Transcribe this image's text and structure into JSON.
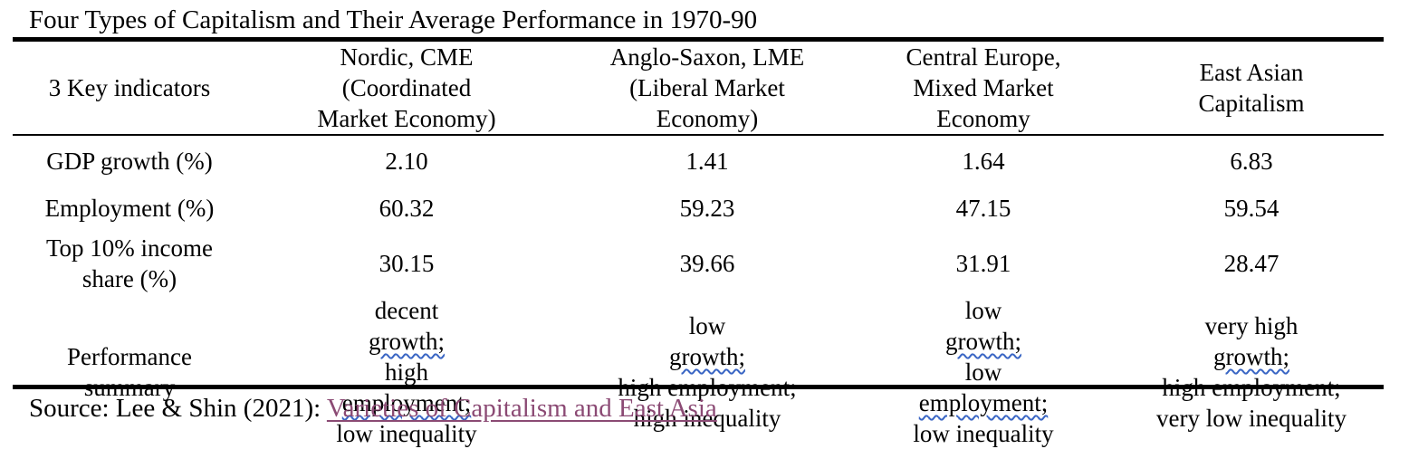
{
  "caption": "Four Types of Capitalism and Their Average Performance in 1970-90",
  "table": {
    "headers": [
      {
        "lines": [
          "3 Key indicators"
        ]
      },
      {
        "lines": [
          "Nordic, CME",
          "(Coordinated",
          "Market Economy)"
        ]
      },
      {
        "lines": [
          "Anglo-Saxon, LME",
          "(Liberal Market",
          "Economy)"
        ]
      },
      {
        "lines": [
          "Central Europe,",
          "Mixed Market",
          "Economy"
        ]
      },
      {
        "lines": [
          "East Asian",
          "Capitalism"
        ]
      }
    ],
    "rows": [
      {
        "label": [
          "GDP growth (%)"
        ],
        "values": [
          "2.10",
          "1.41",
          "1.64",
          "6.83"
        ]
      },
      {
        "label": [
          "Employment (%)"
        ],
        "values": [
          "60.32",
          "59.23",
          "47.15",
          "59.54"
        ]
      },
      {
        "label": [
          "Top 10% income",
          "share (%)"
        ],
        "values": [
          "30.15",
          "39.66",
          "31.91",
          "28.47"
        ]
      }
    ],
    "summary": {
      "label": [
        "Performance",
        "summary"
      ],
      "values": [
        {
          "l1a": "decent ",
          "l1b": "growth;",
          "l2a": "high ",
          "l2b": "employment;",
          "l3": "low inequality"
        },
        {
          "l1a": "low ",
          "l1b": "growth;",
          "l2a": "high employment;",
          "l2b": "",
          "l3": "high inequality"
        },
        {
          "l1a": "low ",
          "l1b": "growth;",
          "l2a": "low ",
          "l2b": "employment;",
          "l3": "low inequality"
        },
        {
          "l1a": "very high ",
          "l1b": "growth;",
          "l2a": "high employment;",
          "l2b": "",
          "l3": "very low inequality"
        }
      ]
    }
  },
  "source": {
    "prefix": "Source: Lee & Shin (2021): ",
    "link_text": "Varieties of Capitalism and East Asia"
  },
  "colors": {
    "link": "#8b4a74",
    "spellcheck_underline": "#3a66c4"
  }
}
